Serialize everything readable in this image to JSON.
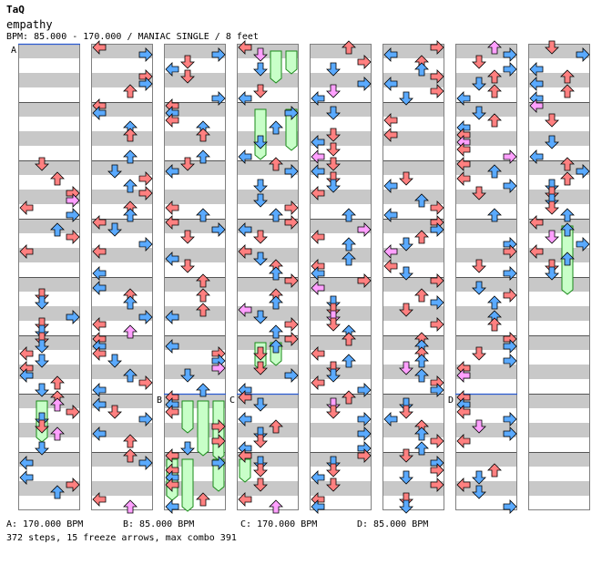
{
  "song": {
    "artist": "TaQ",
    "title": "empathy",
    "info": "BPM: 85.000 - 170.000 / MANIAC SINGLE / 8 feet"
  },
  "footer": {
    "bpm_a": "A: 170.000 BPM",
    "bpm_b": "B: 85.000 BPM",
    "bpm_c": "C: 170.000 BPM",
    "bpm_d": "D: 85.000 BPM",
    "stats": "372 steps, 15 freeze arrows, max combo 391"
  },
  "chart": {
    "columns": 8,
    "measures_per_column": 8,
    "lanes": [
      "left",
      "down",
      "up",
      "right"
    ],
    "bpm_markers": [
      {
        "label": "A",
        "column": 0,
        "measure": 0
      },
      {
        "label": "B",
        "column": 2,
        "measure": 6
      },
      {
        "label": "C",
        "column": 3,
        "measure": 6
      },
      {
        "label": "D",
        "column": 6,
        "measure": 6
      }
    ],
    "colors": {
      "stripe_gray": "#c8c8c8",
      "measure_line": "#555555",
      "quarter_note": "#ff8080",
      "eighth_note": "#5aaaff",
      "sixteenth_note": "#ffa0ff",
      "freeze_fill": "#c8ffc8",
      "freeze_stroke": "#1a8a1a"
    }
  }
}
